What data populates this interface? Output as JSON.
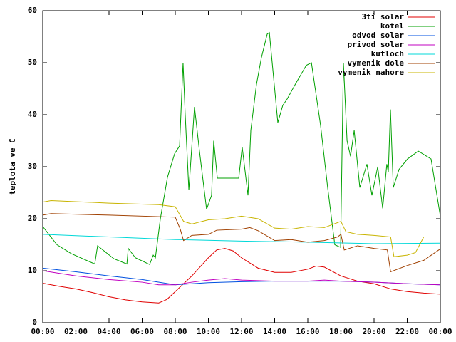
{
  "chart_data": {
    "type": "line",
    "ylabel": "teplota ve C",
    "xlim": [
      0,
      24
    ],
    "ylim": [
      0,
      60
    ],
    "xticks": [
      {
        "value": 0,
        "label": "00:00"
      },
      {
        "value": 2,
        "label": "02:00"
      },
      {
        "value": 4,
        "label": "04:00"
      },
      {
        "value": 6,
        "label": "06:00"
      },
      {
        "value": 8,
        "label": "08:00"
      },
      {
        "value": 10,
        "label": "10:00"
      },
      {
        "value": 12,
        "label": "12:00"
      },
      {
        "value": 14,
        "label": "14:00"
      },
      {
        "value": 16,
        "label": "16:00"
      },
      {
        "value": 18,
        "label": "18:00"
      },
      {
        "value": 20,
        "label": "20:00"
      },
      {
        "value": 22,
        "label": "22:00"
      },
      {
        "value": 24,
        "label": "00:00"
      }
    ],
    "yticks": [
      0,
      10,
      20,
      30,
      40,
      50,
      60
    ],
    "legend": "top-right",
    "series": [
      {
        "name": "3ti solar",
        "color": "#e00000",
        "x": [
          0,
          1,
          2,
          3,
          4,
          5,
          6,
          7,
          7.5,
          8,
          9,
          10,
          10.5,
          11,
          11.5,
          12,
          13,
          14,
          15,
          16,
          16.5,
          17,
          18,
          19,
          20,
          21,
          22,
          23,
          24
        ],
        "values": [
          7.6,
          7,
          6.5,
          5.8,
          5,
          4.4,
          4,
          3.8,
          4.5,
          6,
          9,
          12.5,
          14,
          14.3,
          13.8,
          12.5,
          10.5,
          9.7,
          9.7,
          10.3,
          10.9,
          10.7,
          9,
          8,
          7.5,
          6.5,
          6,
          5.7,
          5.5
        ]
      },
      {
        "name": "kotel",
        "color": "#00a000",
        "x": [
          0,
          0.86,
          1.72,
          3.14,
          3.31,
          4.3,
          5.08,
          5.16,
          5.59,
          6.45,
          6.67,
          6.8,
          7.1,
          7.53,
          7.96,
          8.26,
          8.47,
          8.6,
          8.82,
          9.16,
          9.46,
          9.89,
          10.19,
          10.32,
          10.54,
          11.83,
          12.04,
          12.39,
          12.56,
          12.9,
          13.2,
          13.55,
          13.68,
          14.19,
          14.49,
          14.75,
          15.27,
          15.91,
          16.22,
          16.77,
          17.2,
          17.63,
          17.98,
          18.15,
          18.37,
          18.58,
          18.8,
          19.14,
          19.57,
          19.87,
          20.22,
          20.52,
          20.77,
          20.86,
          20.99,
          21.16,
          21.51,
          22.02,
          22.67,
          23.44,
          24
        ],
        "values": [
          18.5,
          15,
          13.3,
          11.3,
          14.8,
          12.3,
          11.3,
          14.3,
          12.5,
          11.2,
          13,
          12.5,
          20,
          28,
          32.5,
          34,
          50,
          40,
          25.5,
          41.5,
          33,
          21.8,
          24.5,
          35,
          27.8,
          27.8,
          33.8,
          24.5,
          37,
          45.8,
          51,
          55.5,
          55.8,
          38.5,
          41.8,
          43,
          46,
          49.5,
          50,
          38,
          26,
          15,
          14.5,
          50,
          35,
          32,
          37,
          26,
          30.5,
          24.5,
          30,
          22,
          30.5,
          29,
          41,
          26,
          29.5,
          31.5,
          33,
          31.5,
          20.5
        ]
      },
      {
        "name": "odvod solar",
        "color": "#0050e0",
        "x": [
          0,
          2,
          4,
          6,
          8,
          9,
          10,
          12,
          14,
          16,
          18,
          20,
          22,
          24
        ],
        "values": [
          10.5,
          9.8,
          9,
          8.3,
          7.3,
          7.5,
          7.7,
          7.9,
          8,
          8,
          8,
          7.8,
          7.5,
          7.3
        ]
      },
      {
        "name": "privod solar",
        "color": "#c000c0",
        "x": [
          0,
          2,
          4,
          6,
          7,
          8,
          9,
          10,
          11,
          12,
          14,
          16,
          17,
          18,
          20,
          22,
          24
        ],
        "values": [
          10,
          9,
          8.3,
          7.8,
          7.3,
          7.3,
          7.8,
          8.2,
          8.5,
          8.2,
          8,
          8,
          8.2,
          8,
          7.8,
          7.5,
          7.3
        ]
      },
      {
        "name": "kutloch",
        "color": "#00d8d8",
        "x": [
          0,
          4,
          8,
          12,
          16,
          20,
          24
        ],
        "values": [
          17,
          16.5,
          16,
          15.7,
          15.5,
          15.2,
          15.3
        ]
      },
      {
        "name": "vymenik dole",
        "color": "#a04000",
        "x": [
          0,
          0.5,
          4,
          8,
          8.3,
          8.5,
          9,
          10,
          10.5,
          12,
          12.5,
          13,
          14,
          15,
          16,
          17,
          17.8,
          18,
          18.2,
          19,
          20,
          20.8,
          21,
          22,
          23,
          24
        ],
        "values": [
          20.7,
          21,
          20.7,
          20.3,
          18,
          15.8,
          16.8,
          17,
          17.8,
          18,
          18.3,
          17.7,
          15.8,
          16,
          15.5,
          15.8,
          16.5,
          17,
          14,
          14.8,
          14.3,
          14,
          9.8,
          11,
          12,
          14.2
        ]
      },
      {
        "name": "vymenik nahore",
        "color": "#c8b400",
        "x": [
          0,
          0.5,
          4,
          7,
          8,
          8.5,
          9,
          10,
          11,
          12,
          13,
          14,
          15,
          16,
          17,
          18,
          18.3,
          19,
          20,
          21,
          21.2,
          22,
          22.5,
          23,
          24
        ],
        "values": [
          23.2,
          23.5,
          23,
          22.7,
          22.3,
          19.5,
          19,
          19.8,
          20,
          20.5,
          20,
          18.2,
          18,
          18.5,
          18.3,
          19.5,
          17.5,
          17,
          16.8,
          16.5,
          12.7,
          13,
          13.5,
          16.5,
          16.5
        ]
      }
    ]
  }
}
